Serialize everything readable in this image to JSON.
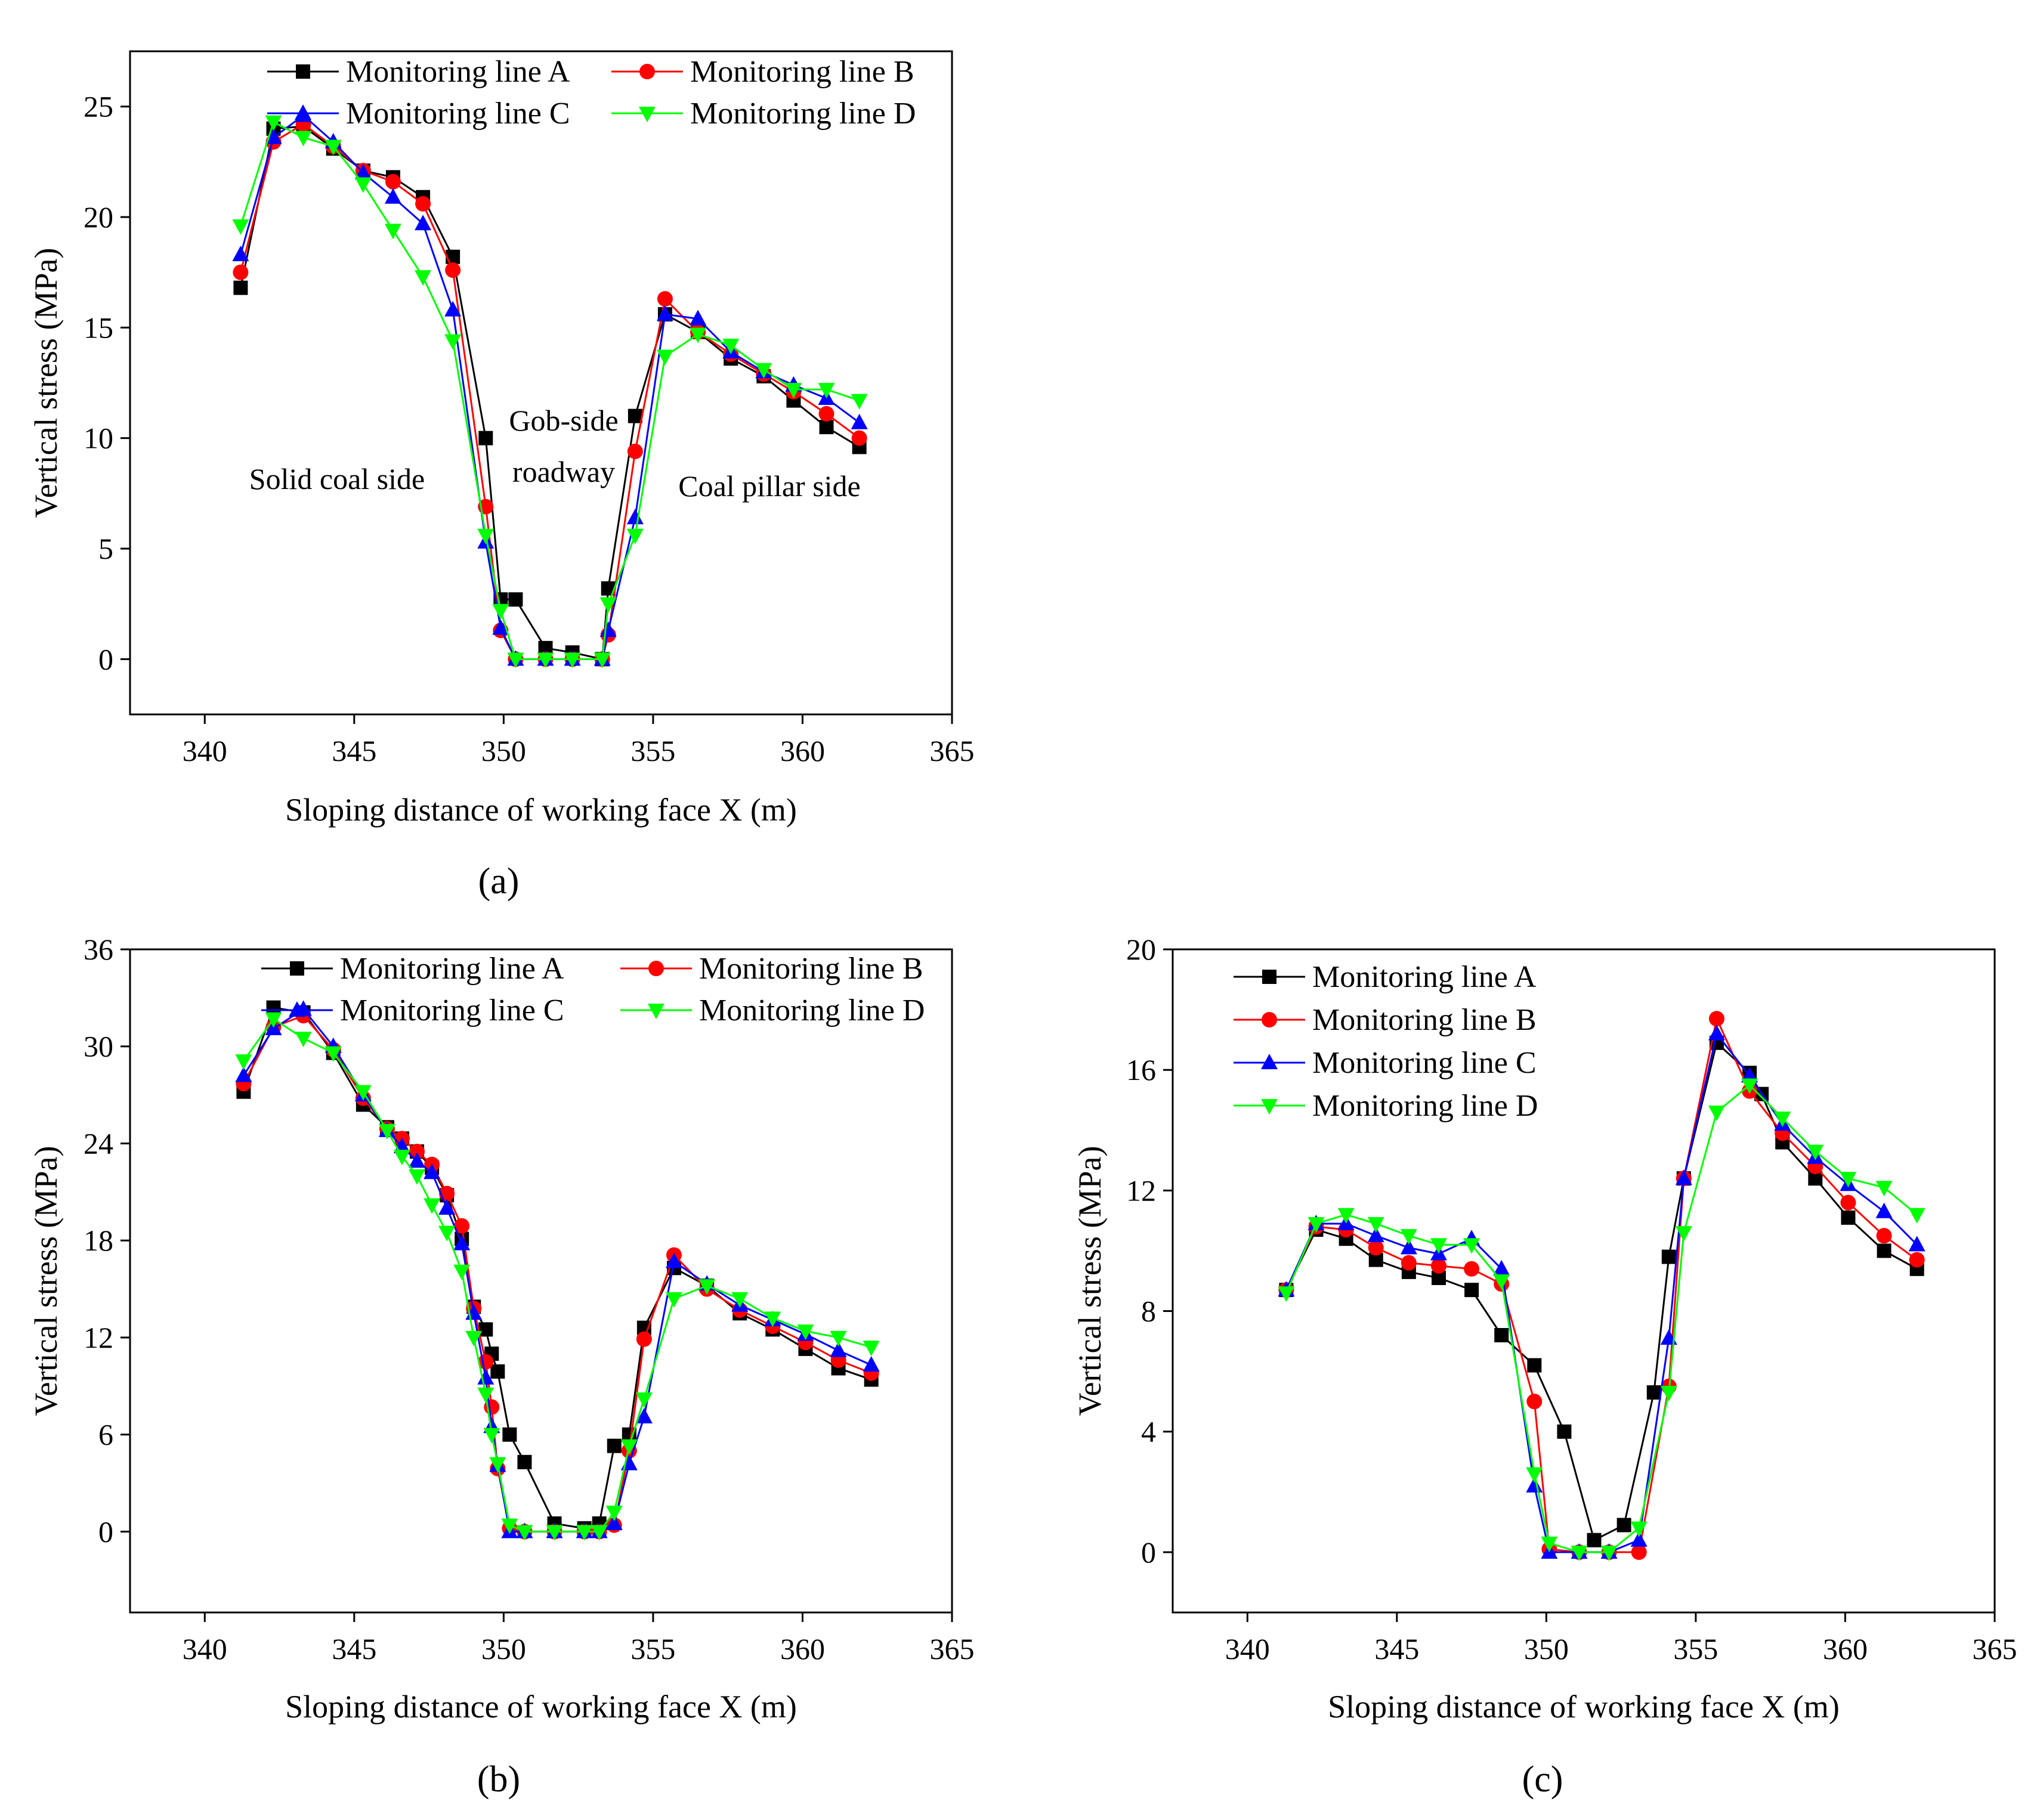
{
  "figure": {
    "panels": [
      {
        "label": "(a)"
      },
      {
        "label": "(b)"
      },
      {
        "label": "(c)"
      }
    ]
  },
  "chart_data": [
    {
      "type": "line",
      "panel": "(a)",
      "xlabel": "Sloping distance of working face X (m)",
      "ylabel": "Vertical stress (MPa)",
      "xlim": [
        337.5,
        365
      ],
      "ylim": [
        -2.5,
        27.5
      ],
      "xticks": [
        340,
        345,
        350,
        355,
        360,
        365
      ],
      "yticks": [
        0,
        5,
        10,
        15,
        20,
        25
      ],
      "legend": "top-center, two columns",
      "annotations": [
        "Solid coal side",
        "Gob-side",
        "roadway",
        "Coal pillar side"
      ],
      "x": [
        341.2,
        342.3,
        343.3,
        344.3,
        345.3,
        346.3,
        347.3,
        348.3,
        349.4,
        349.9,
        350.4,
        351.4,
        352.3,
        353.3,
        353.5,
        354.4,
        355.4,
        356.5,
        357.6,
        358.7,
        359.7,
        360.8,
        361.9
      ],
      "series": [
        {
          "name": "Monitoring line A",
          "color": "#000000",
          "marker": "square",
          "values": [
            16.8,
            24.0,
            24.1,
            23.1,
            22.1,
            21.8,
            20.9,
            18.2,
            10.0,
            2.7,
            2.7,
            0.5,
            0.3,
            0.0,
            3.2,
            11.0,
            15.6,
            14.8,
            13.6,
            12.8,
            11.7,
            10.5,
            9.6
          ]
        },
        {
          "name": "Monitoring line B",
          "color": "#ff0000",
          "marker": "circle",
          "values": [
            17.5,
            23.4,
            24.2,
            23.2,
            22.1,
            21.6,
            20.6,
            17.6,
            6.9,
            1.3,
            0.0,
            0.0,
            0.0,
            0.0,
            1.1,
            9.4,
            16.3,
            14.8,
            13.8,
            12.9,
            12.1,
            11.1,
            10.0
          ]
        },
        {
          "name": "Monitoring line C",
          "color": "#0000ff",
          "marker": "triangle-up",
          "values": [
            18.3,
            23.6,
            24.6,
            23.4,
            22.0,
            20.9,
            19.7,
            15.8,
            5.3,
            1.4,
            0.0,
            0.0,
            0.0,
            0.0,
            1.3,
            6.4,
            15.6,
            15.4,
            13.9,
            13.0,
            12.4,
            11.8,
            10.7
          ]
        },
        {
          "name": "Monitoring line D",
          "color": "#00ff00",
          "marker": "triangle-down",
          "values": [
            19.6,
            24.3,
            23.6,
            23.2,
            21.5,
            19.4,
            17.3,
            14.4,
            5.6,
            2.2,
            0.0,
            0.0,
            0.0,
            0.0,
            2.5,
            5.6,
            13.7,
            14.7,
            14.2,
            13.1,
            12.2,
            12.2,
            11.7
          ]
        }
      ]
    },
    {
      "type": "line",
      "panel": "(b)",
      "xlabel": "Sloping distance of working face X (m)",
      "ylabel": "Vertical stress (MPa)",
      "xlim": [
        337.5,
        365
      ],
      "ylim": [
        -5,
        36
      ],
      "xticks": [
        340,
        345,
        350,
        355,
        360,
        365
      ],
      "yticks": [
        0,
        6,
        12,
        18,
        24,
        30,
        36
      ],
      "legend": "top-center, two columns",
      "x": [
        341.3,
        342.3,
        343.3,
        344.3,
        345.3,
        346.1,
        346.6,
        347.1,
        347.6,
        348.1,
        348.6,
        349.0,
        349.4,
        349.6,
        349.8,
        350.2,
        350.7,
        351.7,
        352.7,
        353.2,
        353.7,
        354.2,
        354.7,
        355.7,
        356.8,
        357.9,
        359.0,
        360.1,
        361.2,
        362.3
      ],
      "series": [
        {
          "name": "Monitoring line A",
          "color": "#000000",
          "marker": "square",
          "values": [
            27.2,
            32.4,
            32.1,
            29.6,
            26.4,
            25.0,
            24.3,
            23.5,
            22.5,
            20.8,
            18.1,
            13.9,
            12.5,
            11.0,
            9.9,
            6.0,
            4.3,
            0.5,
            0.2,
            0.5,
            5.3,
            6.0,
            12.6,
            16.3,
            15.2,
            13.5,
            12.5,
            11.3,
            10.1,
            9.4
          ]
        },
        {
          "name": "Monitoring line B",
          "color": "#ff0000",
          "marker": "circle",
          "values": [
            27.7,
            31.2,
            31.9,
            29.8,
            26.8,
            24.9,
            24.3,
            23.5,
            22.7,
            20.9,
            18.9,
            13.8,
            10.5,
            7.7,
            3.9,
            0.2,
            0.0,
            0.0,
            0.0,
            0.0,
            0.4,
            5.0,
            11.9,
            17.1,
            15.0,
            13.7,
            12.7,
            11.7,
            10.6,
            9.8
          ]
        },
        {
          "name": "Monitoring line C",
          "color": "#0000ff",
          "marker": "triangle-up",
          "values": [
            28.2,
            31.1,
            32.3,
            30.0,
            27.0,
            24.8,
            23.8,
            22.9,
            22.2,
            20.0,
            17.8,
            13.5,
            9.5,
            6.5,
            4.1,
            0.0,
            0.0,
            0.0,
            0.0,
            0.0,
            0.5,
            4.2,
            7.1,
            16.7,
            15.3,
            14.0,
            13.1,
            12.2,
            11.2,
            10.3
          ]
        },
        {
          "name": "Monitoring line D",
          "color": "#00ff00",
          "marker": "triangle-down",
          "values": [
            29.1,
            31.7,
            30.5,
            29.6,
            27.2,
            24.8,
            23.2,
            22.0,
            20.2,
            18.5,
            16.1,
            12.0,
            8.5,
            6.0,
            4.2,
            0.4,
            0.0,
            0.0,
            0.0,
            0.0,
            1.2,
            5.3,
            8.2,
            14.4,
            15.2,
            14.4,
            13.2,
            12.4,
            12.0,
            11.4
          ]
        }
      ]
    },
    {
      "type": "line",
      "panel": "(c)",
      "xlabel": "Sloping distance of working face X (m)",
      "ylabel": "Vertical stress (MPa)",
      "xlim": [
        337.5,
        365
      ],
      "ylim": [
        -2,
        20
      ],
      "xticks": [
        340,
        345,
        350,
        355,
        360,
        365
      ],
      "yticks": [
        0,
        4,
        8,
        12,
        16,
        20
      ],
      "legend": "top-left, one column",
      "x": [
        341.3,
        342.3,
        343.3,
        344.3,
        345.4,
        346.4,
        347.5,
        348.5,
        349.6,
        350.1,
        350.6,
        351.1,
        351.6,
        352.1,
        352.6,
        353.1,
        353.6,
        354.1,
        354.6,
        355.7,
        356.8,
        357.2,
        357.9,
        359.0,
        360.1,
        361.3,
        362.4
      ],
      "series": [
        {
          "name": "Monitoring line A",
          "color": "#000000",
          "marker": "square",
          "values": [
            8.7,
            10.7,
            10.4,
            9.7,
            9.3,
            9.1,
            8.7,
            7.2,
            6.2,
            null,
            4.0,
            null,
            0.4,
            null,
            0.9,
            null,
            5.3,
            9.8,
            12.4,
            16.9,
            15.9,
            15.2,
            13.6,
            12.4,
            11.1,
            10.0,
            9.4
          ]
        },
        {
          "name": "Monitoring line B",
          "color": "#ff0000",
          "marker": "circle",
          "values": [
            8.7,
            10.8,
            10.7,
            10.1,
            9.6,
            9.5,
            9.4,
            8.9,
            5.0,
            0.1,
            null,
            0.0,
            null,
            0.0,
            null,
            0.0,
            null,
            5.5,
            12.4,
            17.7,
            15.3,
            null,
            13.9,
            12.8,
            11.6,
            10.5,
            9.7
          ]
        },
        {
          "name": "Monitoring line C",
          "color": "#0000ff",
          "marker": "triangle-up",
          "values": [
            8.7,
            10.9,
            10.9,
            10.5,
            10.1,
            9.9,
            10.4,
            9.4,
            2.2,
            0.0,
            null,
            0.0,
            null,
            0.0,
            null,
            0.4,
            null,
            7.1,
            12.4,
            17.2,
            15.8,
            null,
            14.2,
            13.1,
            12.2,
            11.3,
            10.2
          ]
        },
        {
          "name": "Monitoring line D",
          "color": "#00ff00",
          "marker": "triangle-down",
          "values": [
            8.6,
            10.9,
            11.2,
            10.9,
            10.5,
            10.2,
            10.2,
            9.0,
            2.6,
            0.3,
            null,
            0.0,
            null,
            0.0,
            null,
            0.8,
            null,
            5.3,
            10.6,
            14.6,
            15.5,
            null,
            14.4,
            13.3,
            12.4,
            12.1,
            11.2
          ]
        }
      ]
    }
  ]
}
